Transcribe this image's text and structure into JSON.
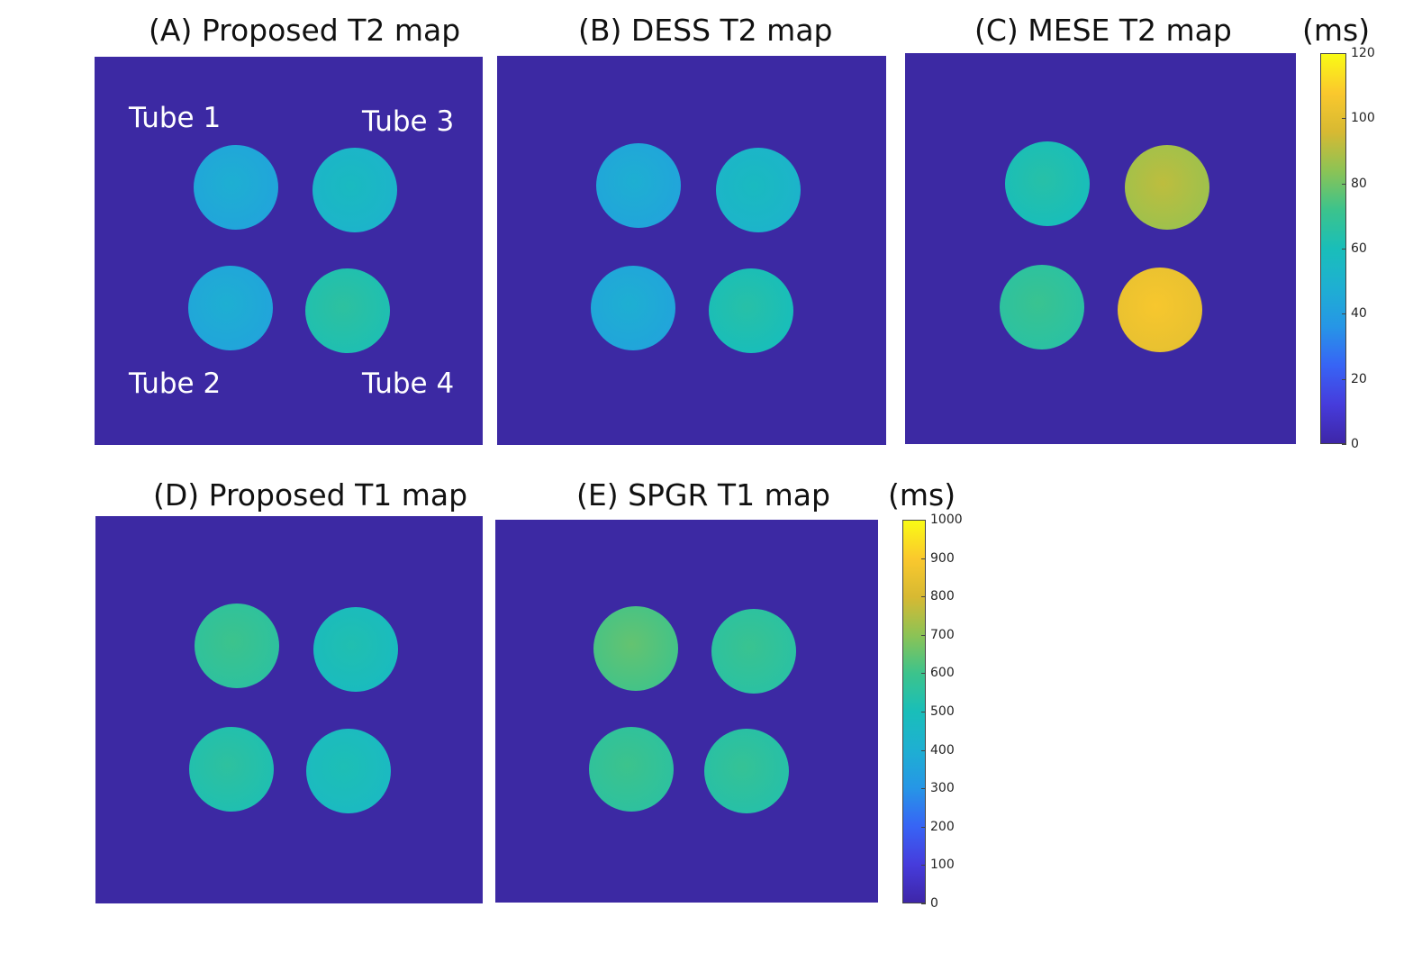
{
  "chart_data": {
    "type": "heatmap",
    "figure_titles": {
      "a": "(A) Proposed T2 map",
      "b": "(B) DESS T2 map",
      "c": "(C) MESE T2 map",
      "d": "(D) Proposed T1 map",
      "e": "(E) SPGR T1 map"
    },
    "tube_labels": {
      "t1": "Tube 1",
      "t2": "Tube 2",
      "t3": "Tube 3",
      "t4": "Tube 4"
    },
    "t2_colorbar": {
      "unit": "(ms)",
      "range": [
        0,
        120
      ],
      "ticks": [
        "0",
        "20",
        "40",
        "60",
        "80",
        "100",
        "120"
      ]
    },
    "t1_colorbar": {
      "unit": "(ms)",
      "range": [
        0,
        1000
      ],
      "ticks": [
        "0",
        "100",
        "200",
        "300",
        "400",
        "500",
        "600",
        "700",
        "800",
        "900",
        "1000"
      ]
    },
    "panels": {
      "a": {
        "tube1": 43,
        "tube2": 43,
        "tube3": 52,
        "tube4": 62
      },
      "b": {
        "tube1": 43,
        "tube2": 43,
        "tube3": 52,
        "tube4": 60
      },
      "c": {
        "tube1": 60,
        "tube2": 66,
        "tube3": 87,
        "tube4": 102
      },
      "d": {
        "tube1": 560,
        "tube2": 520,
        "tube3": 480,
        "tube4": 470
      },
      "e": {
        "tube1": 610,
        "tube2": 560,
        "tube3": 550,
        "tube4": 540
      }
    }
  }
}
